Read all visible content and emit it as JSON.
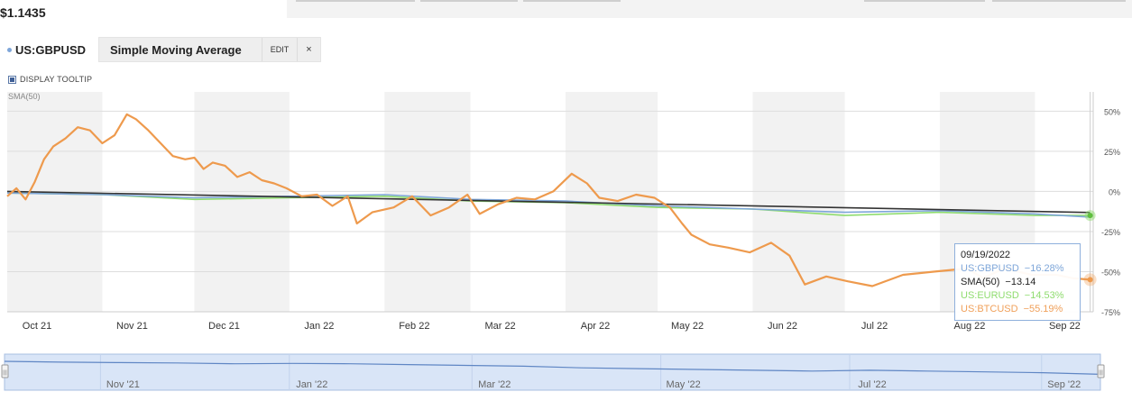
{
  "header": {
    "price": "$1.1435",
    "ticker": "US:GBPUSD",
    "study_name": "Simple Moving Average",
    "edit_label": "EDIT",
    "close_label": "×"
  },
  "controls": {
    "tooltip_toggle_label": "DISPLAY TOOLTIP",
    "tooltip_checked": true,
    "sma_label": "SMA(50)"
  },
  "tooltip": {
    "date": "09/19/2022",
    "rows": [
      {
        "name": "US:GBPUSD",
        "value": "−16.28%",
        "color": "#7ea6d9"
      },
      {
        "name": "SMA(50)",
        "value": "−13.14",
        "color": "#222222"
      },
      {
        "name": "US:EURUSD",
        "value": "−14.53%",
        "color": "#8fdc6f"
      },
      {
        "name": "US:BTCUSD",
        "value": "−55.19%",
        "color": "#f0a05a"
      }
    ]
  },
  "colors": {
    "gbpusd": "#7ea6d9",
    "sma": "#333333",
    "eurusd": "#8fdc6f",
    "btcusd": "#ee9a4d",
    "band": "#f2f2f2",
    "navigator_fill": "#d9e5f7",
    "navigator_line": "#5f86c4"
  },
  "chart_data": {
    "type": "line",
    "title": "",
    "xlabel": "",
    "ylabel": "",
    "x_range": [
      "2021-10-01",
      "2022-09-20"
    ],
    "ylim": [
      -75,
      62
    ],
    "y_ticks": [
      "50%",
      "25%",
      "0%",
      "-25%",
      "-50%",
      "-75%"
    ],
    "y_tick_values": [
      50,
      25,
      0,
      -25,
      -50,
      -75
    ],
    "x_ticks": [
      "Oct 21",
      "Nov 21",
      "Dec 21",
      "Jan 22",
      "Feb 22",
      "Mar 22",
      "Apr 22",
      "May 22",
      "Jun 22",
      "Jul 22",
      "Aug 22",
      "Sep 22"
    ],
    "x_tick_dates": [
      "2021-10-01",
      "2021-11-01",
      "2021-12-01",
      "2022-01-01",
      "2022-02-01",
      "2022-03-01",
      "2022-04-01",
      "2022-05-01",
      "2022-06-01",
      "2022-07-01",
      "2022-08-01",
      "2022-09-01"
    ],
    "grid": true,
    "legend_position": "top-left",
    "series": [
      {
        "name": "US:BTCUSD",
        "color": "#ee9a4d",
        "x": [
          "2021-10-01",
          "2021-10-04",
          "2021-10-07",
          "2021-10-10",
          "2021-10-13",
          "2021-10-16",
          "2021-10-20",
          "2021-10-24",
          "2021-10-28",
          "2021-11-01",
          "2021-11-05",
          "2021-11-09",
          "2021-11-12",
          "2021-11-16",
          "2021-11-20",
          "2021-11-24",
          "2021-11-28",
          "2021-12-01",
          "2021-12-04",
          "2021-12-07",
          "2021-12-11",
          "2021-12-15",
          "2021-12-19",
          "2021-12-23",
          "2021-12-27",
          "2021-12-31",
          "2022-01-05",
          "2022-01-10",
          "2022-01-15",
          "2022-01-20",
          "2022-01-23",
          "2022-01-28",
          "2022-02-04",
          "2022-02-10",
          "2022-02-16",
          "2022-02-22",
          "2022-02-28",
          "2022-03-04",
          "2022-03-10",
          "2022-03-16",
          "2022-03-22",
          "2022-03-28",
          "2022-04-03",
          "2022-04-08",
          "2022-04-12",
          "2022-04-18",
          "2022-04-24",
          "2022-04-30",
          "2022-05-05",
          "2022-05-09",
          "2022-05-12",
          "2022-05-18",
          "2022-05-24",
          "2022-05-31",
          "2022-06-07",
          "2022-06-13",
          "2022-06-18",
          "2022-06-25",
          "2022-07-02",
          "2022-07-10",
          "2022-07-20",
          "2022-07-30",
          "2022-08-10",
          "2022-08-15",
          "2022-08-22",
          "2022-08-31",
          "2022-09-08",
          "2022-09-13",
          "2022-09-19"
        ],
        "y": [
          -3,
          2,
          -5,
          6,
          20,
          28,
          33,
          40,
          38,
          30,
          35,
          48,
          45,
          38,
          30,
          22,
          20,
          21,
          14,
          18,
          16,
          9,
          12,
          7,
          5,
          2,
          -3,
          -2,
          -9,
          -3,
          -20,
          -13,
          -10,
          -3,
          -15,
          -10,
          -2,
          -14,
          -8,
          -4,
          -5,
          0,
          11,
          5,
          -4,
          -6,
          -2,
          -4,
          -10,
          -20,
          -27,
          -33,
          -35,
          -38,
          -32,
          -40,
          -58,
          -53,
          -56,
          -59,
          -52,
          -50,
          -48,
          -54,
          -48,
          -52,
          -52,
          -54,
          -55
        ]
      },
      {
        "name": "US:GBPUSD",
        "color": "#7ea6d9",
        "x": [
          "2021-10-01",
          "2021-11-01",
          "2021-12-01",
          "2022-01-01",
          "2022-02-01",
          "2022-03-01",
          "2022-04-01",
          "2022-05-01",
          "2022-06-01",
          "2022-07-01",
          "2022-08-01",
          "2022-09-01",
          "2022-09-19"
        ],
        "y": [
          -1,
          -2,
          -4,
          -3,
          -2,
          -5,
          -6,
          -9,
          -11,
          -13,
          -12,
          -14,
          -16
        ]
      },
      {
        "name": "US:EURUSD",
        "color": "#8fdc6f",
        "x": [
          "2021-10-01",
          "2021-11-01",
          "2021-12-01",
          "2022-01-01",
          "2022-02-01",
          "2022-03-01",
          "2022-04-01",
          "2022-05-01",
          "2022-06-01",
          "2022-07-01",
          "2022-08-01",
          "2022-09-01",
          "2022-09-19"
        ],
        "y": [
          -1,
          -2,
          -5,
          -4,
          -3,
          -6,
          -7,
          -10,
          -11,
          -15,
          -13,
          -15,
          -15
        ]
      },
      {
        "name": "SMA(50)",
        "color": "#333333",
        "x": [
          "2021-10-01",
          "2022-09-19"
        ],
        "y": [
          0,
          -13.14
        ]
      }
    ]
  },
  "navigator": {
    "labels": [
      "Nov '21",
      "Jan '22",
      "Mar '22",
      "May '22",
      "Jul '22",
      "Sep '22"
    ],
    "label_dates": [
      "2021-11-01",
      "2022-01-01",
      "2022-03-01",
      "2022-05-01",
      "2022-07-01",
      "2022-09-01"
    ],
    "handle_glyph": "|||",
    "series_y": [
      0,
      -1,
      -1.5,
      -2,
      -3,
      -2.5,
      -3,
      -4,
      -5,
      -6,
      -8,
      -9,
      -10,
      -11,
      -12,
      -11,
      -12,
      -13,
      -14,
      -16
    ]
  }
}
